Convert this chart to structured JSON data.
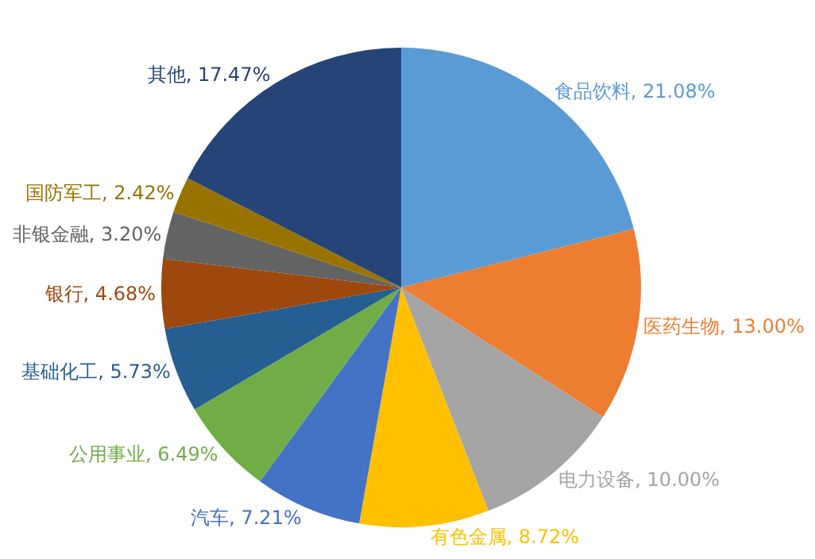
{
  "chart_data": {
    "type": "pie",
    "categories": [
      "食品饮料",
      "医药生物",
      "电力设备",
      "有色金属",
      "汽车",
      "公用事业",
      "基础化工",
      "银行",
      "非银金融",
      "国防军工",
      "其他"
    ],
    "values": [
      21.08,
      13.0,
      10.0,
      8.72,
      7.21,
      6.49,
      5.73,
      4.68,
      3.2,
      2.42,
      17.47
    ],
    "value_labels": [
      "21.08%",
      "13.00%",
      "10.00%",
      "8.72%",
      "7.21%",
      "6.49%",
      "5.73%",
      "4.68%",
      "3.20%",
      "2.42%",
      "17.47%"
    ],
    "colors": [
      "#5b9bd5",
      "#ed7d31",
      "#a5a5a5",
      "#ffc000",
      "#4472c4",
      "#70ad47",
      "#255e91",
      "#9e480e",
      "#636363",
      "#997300",
      "#264478"
    ],
    "legend": false
  }
}
